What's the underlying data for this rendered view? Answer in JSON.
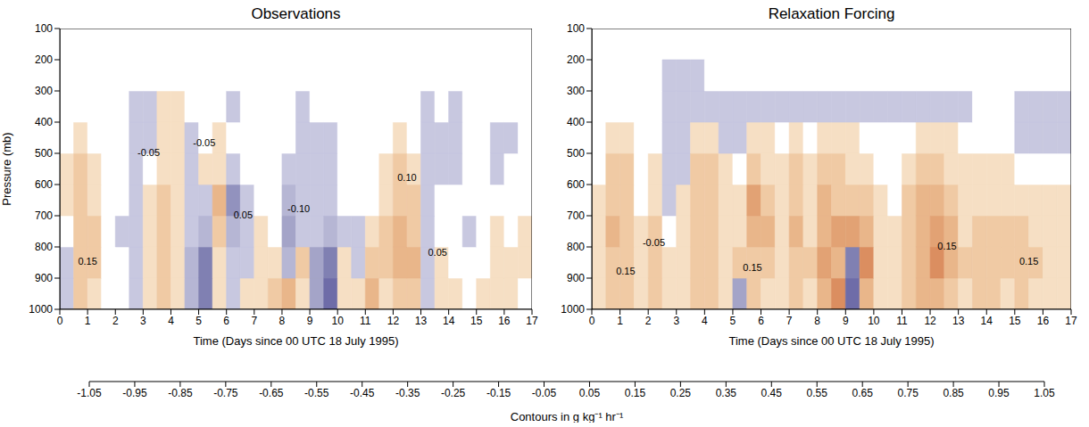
{
  "chart_data": [
    {
      "type": "heatmap",
      "title": "Observations",
      "x_label": "Time (Days since 00 UTC 18 July 1995)",
      "y_label": "Pressure (mb)",
      "xlim": [
        0,
        17
      ],
      "xticks": [
        0,
        1,
        2,
        3,
        4,
        5,
        6,
        7,
        8,
        9,
        10,
        11,
        12,
        13,
        14,
        15,
        16,
        17
      ],
      "ylim": [
        100,
        1000
      ],
      "yticks": [
        100,
        200,
        300,
        400,
        500,
        600,
        700,
        800,
        900,
        1000
      ],
      "x_edges": [
        0,
        0.5,
        1,
        1.5,
        2,
        2.5,
        3,
        3.5,
        4,
        4.5,
        5,
        5.5,
        6,
        6.5,
        7,
        7.5,
        8,
        8.5,
        9,
        9.5,
        10,
        10.5,
        11,
        11.5,
        12,
        12.5,
        13,
        13.5,
        14,
        14.5,
        15,
        15.5,
        16,
        16.5,
        17
      ],
      "y_edges": [
        1000,
        900,
        800,
        700,
        600,
        500,
        400,
        300,
        200
      ],
      "cells": [
        [
          -0.08,
          0.18,
          0.12,
          0,
          0.02,
          -0.1,
          0.1,
          0.15,
          0.08,
          -0.2,
          -0.55,
          0.1,
          -0.1,
          0.05,
          0.08,
          0.15,
          0.25,
          0.1,
          -0.3,
          -0.65,
          0.1,
          0.05,
          0.3,
          0.12,
          0.15,
          0.2,
          -0.08,
          0.05,
          0.12,
          0,
          0.1,
          0.05,
          0.12,
          0
        ],
        [
          -0.12,
          0.2,
          0.18,
          0.02,
          0,
          -0.15,
          0.12,
          0.2,
          0.1,
          -0.25,
          -0.5,
          0.12,
          -0.15,
          -0.08,
          0.05,
          0.12,
          -0.25,
          0.2,
          -0.35,
          -0.55,
          0.05,
          -0.08,
          0.2,
          0.15,
          0.3,
          0.25,
          -0.1,
          0.05,
          0.02,
          -0.05,
          0.02,
          0.08,
          0.05,
          0.06
        ],
        [
          -0.05,
          0.22,
          0.15,
          0,
          -0.08,
          -0.15,
          0.08,
          0.18,
          0.12,
          -0.15,
          -0.2,
          0.2,
          -0.25,
          -0.15,
          0.05,
          0.02,
          -0.3,
          -0.1,
          -0.15,
          -0.2,
          -0.08,
          -0.1,
          0.05,
          0.15,
          0.3,
          0.2,
          -0.12,
          -0.05,
          0,
          -0.08,
          0,
          0.05,
          0.02,
          0.05
        ],
        [
          0.05,
          0.18,
          0.12,
          0,
          -0.05,
          -0.12,
          0.05,
          0.15,
          0.1,
          -0.12,
          -0.08,
          0.3,
          -0.4,
          -0.12,
          0,
          0.02,
          -0.2,
          -0.12,
          -0.1,
          -0.1,
          -0.05,
          0,
          0,
          0.1,
          0.2,
          0.15,
          -0.1,
          -0.05,
          0.02,
          -0.05,
          0,
          0.02,
          0,
          0
        ],
        [
          0.06,
          0.15,
          0.08,
          0,
          0.02,
          -0.1,
          -0.05,
          0.12,
          0.1,
          -0.08,
          0.05,
          0.12,
          -0.1,
          -0.05,
          0,
          0,
          -0.08,
          -0.12,
          -0.1,
          -0.08,
          0,
          0.02,
          0,
          0.08,
          0.15,
          0.08,
          -0.1,
          -0.08,
          -0.08,
          -0.02,
          0.02,
          -0.1,
          0,
          0
        ],
        [
          0,
          0.08,
          0.02,
          0,
          -0.03,
          -0.1,
          -0.1,
          0.12,
          0.08,
          -0.06,
          0,
          0.06,
          -0.05,
          0,
          0,
          0,
          0,
          -0.12,
          -0.1,
          -0.06,
          0,
          0,
          0,
          0,
          0.06,
          0,
          -0.1,
          -0.06,
          -0.1,
          0,
          0,
          -0.1,
          -0.06,
          -0.05
        ],
        [
          0,
          0,
          0,
          0,
          0,
          -0.08,
          -0.08,
          0.1,
          0.06,
          -0.02,
          0,
          0,
          -0.06,
          0,
          0,
          0,
          0,
          -0.06,
          -0.03,
          0,
          0,
          0,
          0,
          0,
          0,
          0,
          -0.06,
          0,
          -0.08,
          0,
          0,
          0,
          0,
          0
        ],
        [
          0,
          0,
          0,
          0,
          0,
          0,
          0,
          0,
          0,
          0,
          0,
          0,
          0,
          0,
          0,
          0,
          0,
          0,
          0,
          0,
          0,
          0,
          0,
          0,
          0,
          0,
          0,
          0,
          0,
          0,
          0,
          0,
          0,
          0
        ]
      ],
      "annotations": [
        {
          "x": 1,
          "y": 850,
          "text": "0.15"
        },
        {
          "x": 3.2,
          "y": 500,
          "text": "-0.05"
        },
        {
          "x": 5.2,
          "y": 470,
          "text": "-0.05"
        },
        {
          "x": 6.6,
          "y": 700,
          "text": "0.05"
        },
        {
          "x": 8.6,
          "y": 680,
          "text": "-0.10"
        },
        {
          "x": 12.5,
          "y": 580,
          "text": "0.10"
        },
        {
          "x": 13.6,
          "y": 820,
          "text": "0.05"
        }
      ]
    },
    {
      "type": "heatmap",
      "title": "Relaxation Forcing",
      "x_label": "Time (Days since 00 UTC 18 July 1995)",
      "xlim": [
        0,
        17
      ],
      "xticks": [
        0,
        1,
        2,
        3,
        4,
        5,
        6,
        7,
        8,
        9,
        10,
        11,
        12,
        13,
        14,
        15,
        16,
        17
      ],
      "ylim": [
        100,
        1000
      ],
      "yticks": [
        100,
        200,
        300,
        400,
        500,
        600,
        700,
        800,
        900,
        1000
      ],
      "x_edges": [
        0,
        0.5,
        1,
        1.5,
        2,
        2.5,
        3,
        3.5,
        4,
        4.5,
        5,
        5.5,
        6,
        6.5,
        7,
        7.5,
        8,
        8.5,
        9,
        9.5,
        10,
        10.5,
        11,
        11.5,
        12,
        12.5,
        13,
        13.5,
        14,
        14.5,
        15,
        15.5,
        16,
        16.5,
        17
      ],
      "y_edges": [
        1000,
        900,
        800,
        700,
        600,
        500,
        400,
        300,
        200
      ],
      "cells": [
        [
          0.08,
          0.2,
          0.15,
          0.05,
          0.15,
          0.1,
          0.12,
          0.2,
          0.15,
          0.1,
          -0.3,
          0.2,
          0.1,
          0.08,
          0.15,
          0.1,
          0.3,
          0.45,
          -0.6,
          0.3,
          0.1,
          0.05,
          0.15,
          0.25,
          0.3,
          0.2,
          0.12,
          0.15,
          0.15,
          0.12,
          0.15,
          0.12,
          0.1,
          0.1
        ],
        [
          0.1,
          0.22,
          0.2,
          0.08,
          0.2,
          0.05,
          0.1,
          0.2,
          0.18,
          0.12,
          0.15,
          0.2,
          0.15,
          0.1,
          0.2,
          0.15,
          0.35,
          0.3,
          -0.5,
          0.45,
          0.1,
          0.05,
          0.2,
          0.3,
          0.45,
          0.25,
          0.15,
          0.15,
          0.18,
          0.15,
          0.18,
          0.15,
          0.12,
          0.1
        ],
        [
          0.08,
          0.25,
          0.22,
          0.05,
          0.15,
          -0.05,
          0.08,
          0.22,
          0.2,
          0.1,
          0.12,
          0.25,
          0.25,
          0.1,
          0.25,
          0.12,
          0.3,
          0.35,
          0.4,
          0.3,
          0.08,
          0.05,
          0.18,
          0.3,
          0.35,
          0.25,
          0.12,
          0.15,
          0.2,
          0.15,
          0.15,
          0.12,
          0.12,
          0.1
        ],
        [
          0.05,
          0.22,
          0.2,
          0.02,
          0.12,
          -0.08,
          0.05,
          0.2,
          0.18,
          0.08,
          0.1,
          0.35,
          0.2,
          0.08,
          0.2,
          0.1,
          0.25,
          0.2,
          0.2,
          0.15,
          0.05,
          0.02,
          0.15,
          0.25,
          0.25,
          0.2,
          0.1,
          0.1,
          0.12,
          0.1,
          0.12,
          0.1,
          0.08,
          0.06
        ],
        [
          0.02,
          0.18,
          0.15,
          0,
          0.05,
          -0.1,
          -0.08,
          0.15,
          0.15,
          0.05,
          -0.05,
          0.15,
          0.12,
          0.05,
          0.15,
          0.08,
          0.15,
          0.15,
          0.1,
          0.08,
          0,
          0,
          0.08,
          0.15,
          0.15,
          0.12,
          0.05,
          0.05,
          0.06,
          0.05,
          0.02,
          0,
          0,
          0
        ],
        [
          0,
          0.12,
          0.08,
          0,
          0,
          -0.12,
          -0.1,
          0.1,
          0.1,
          -0.06,
          -0.08,
          0.05,
          0.05,
          0,
          0.06,
          0.02,
          0.05,
          0.06,
          0.05,
          0,
          0,
          0,
          0,
          0.06,
          0.08,
          0.05,
          0,
          0,
          0,
          0,
          -0.08,
          -0.08,
          -0.06,
          -0.06
        ],
        [
          0,
          0,
          0,
          0,
          0,
          -0.12,
          -0.12,
          -0.1,
          -0.08,
          -0.08,
          -0.1,
          -0.12,
          -0.1,
          -0.1,
          -0.08,
          -0.1,
          -0.12,
          -0.12,
          -0.1,
          -0.08,
          -0.1,
          -0.08,
          -0.1,
          -0.12,
          -0.08,
          -0.1,
          -0.06,
          0,
          0,
          0,
          -0.06,
          -0.08,
          -0.08,
          -0.1
        ],
        [
          0,
          0,
          0,
          0,
          0,
          -0.08,
          -0.1,
          -0.08,
          0,
          0,
          0,
          0,
          0,
          0,
          0,
          0,
          0,
          0,
          0,
          0,
          0,
          0,
          0,
          0,
          0,
          0,
          0,
          0,
          0,
          0,
          0,
          0,
          0,
          0
        ]
      ],
      "annotations": [
        {
          "x": 1.2,
          "y": 880,
          "text": "0.15"
        },
        {
          "x": 2.2,
          "y": 790,
          "text": "-0.05"
        },
        {
          "x": 5.7,
          "y": 870,
          "text": "0.15"
        },
        {
          "x": 12.6,
          "y": 800,
          "text": "0.15"
        },
        {
          "x": 15.5,
          "y": 850,
          "text": "0.15"
        }
      ]
    }
  ],
  "colorbar": {
    "label": "Contours in g kg⁻¹ hr⁻¹",
    "range": [
      -1.05,
      1.05
    ],
    "ticks": [
      -1.05,
      -0.95,
      -0.85,
      -0.75,
      -0.65,
      -0.55,
      -0.45,
      -0.35,
      -0.25,
      -0.15,
      -0.05,
      0.05,
      0.15,
      0.25,
      0.35,
      0.45,
      0.55,
      0.65,
      0.75,
      0.85,
      0.95,
      1.05
    ],
    "colors": [
      "#2a3a9e",
      "#3a4396",
      "#4a4e98",
      "#5c5c9e",
      "#6e6ca8",
      "#8080b2",
      "#9292be",
      "#a4a4c8",
      "#b6b6d4",
      "#c8c8e0",
      "#ffffff",
      "#f6dfc4",
      "#f0caa4",
      "#e9b68a",
      "#e2a274",
      "#db8e60",
      "#d67c50",
      "#d26a42",
      "#cf5836",
      "#cc452c",
      "#c92e22"
    ]
  }
}
